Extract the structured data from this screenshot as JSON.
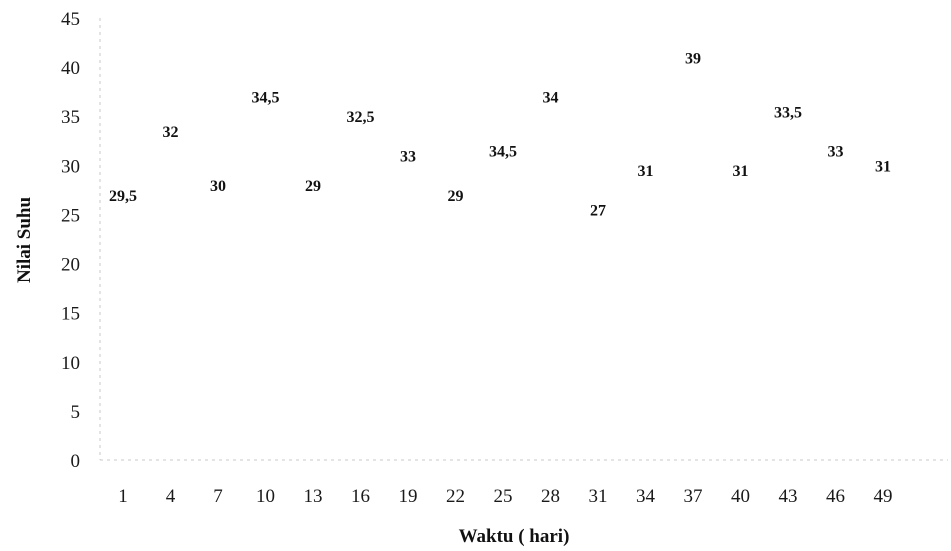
{
  "chart_data": {
    "type": "scatter",
    "title": "",
    "xlabel": "Waktu ( hari)",
    "ylabel": "Nilai Suhu",
    "ylim": [
      0,
      45
    ],
    "yticks": [
      0,
      5,
      10,
      15,
      20,
      25,
      30,
      35,
      40,
      45
    ],
    "xticks": [
      1,
      4,
      7,
      10,
      13,
      16,
      19,
      22,
      25,
      28,
      31,
      34,
      37,
      40,
      43,
      46,
      49
    ],
    "grid": false,
    "legend": "none",
    "series": [
      {
        "points": [
          {
            "x": 1,
            "y": 27,
            "label": "29,5"
          },
          {
            "x": 4,
            "y": 33.5,
            "label": "32"
          },
          {
            "x": 7,
            "y": 28,
            "label": "30"
          },
          {
            "x": 10,
            "y": 37,
            "label": "34,5"
          },
          {
            "x": 13,
            "y": 28,
            "label": "29"
          },
          {
            "x": 16,
            "y": 35,
            "label": "32,5"
          },
          {
            "x": 19,
            "y": 31,
            "label": "33"
          },
          {
            "x": 22,
            "y": 27,
            "label": "29"
          },
          {
            "x": 25,
            "y": 31.5,
            "label": "34,5"
          },
          {
            "x": 28,
            "y": 37,
            "label": "34"
          },
          {
            "x": 31,
            "y": 25.5,
            "label": "27"
          },
          {
            "x": 34,
            "y": 29.5,
            "label": "31"
          },
          {
            "x": 37,
            "y": 41,
            "label": "39"
          },
          {
            "x": 40,
            "y": 29.5,
            "label": "31"
          },
          {
            "x": 43,
            "y": 35.5,
            "label": "33,5"
          },
          {
            "x": 46,
            "y": 31.5,
            "label": "33"
          },
          {
            "x": 49,
            "y": 30,
            "label": "31"
          }
        ]
      }
    ]
  }
}
